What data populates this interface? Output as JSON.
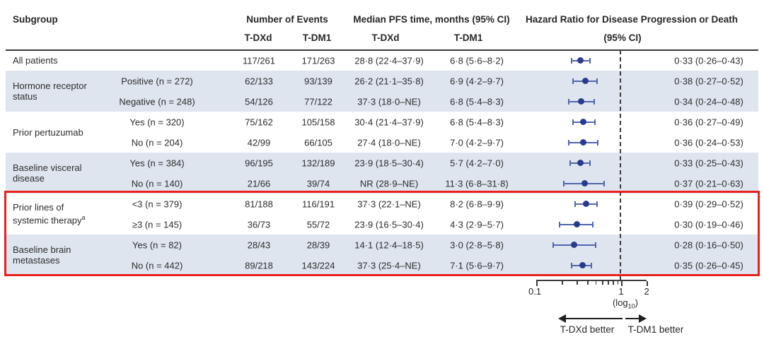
{
  "figure": {
    "headers": {
      "subgroup": "Subgroup",
      "events": "Number of Events",
      "events_tdxd": "T-DXd",
      "events_tdm1": "T-DM1",
      "pfs": "Median PFS time, months (95% CI)",
      "pfs_tdxd": "T-DXd",
      "pfs_tdm1": "T-DM1",
      "hr_line1": "Hazard Ratio for Disease Progression or Death",
      "hr_line2": "(95% CI)"
    },
    "colors": {
      "row_band": "#dee5ef",
      "marker_dot": "#2a3b8f",
      "ci_line": "#5265ae",
      "highlight_box": "#e9211c",
      "reference_dash": "#3c3c3c"
    }
  },
  "chart_data": {
    "type": "scatter",
    "variant": "forest-plot",
    "x_scale": "log10",
    "x_range": [
      0.1,
      2
    ],
    "x_ticks": [
      0.1,
      1,
      2
    ],
    "x_tick_labels": [
      "0.1",
      "1",
      "2"
    ],
    "reference_line": 1,
    "scale_note_prefix": "(log",
    "scale_note_sub": "10",
    "scale_note_suffix": ")",
    "direction_left": "T-DXd better",
    "direction_right": "T-DM1 better",
    "highlighted_groups": [
      "Prior lines of systemic therapy",
      "Baseline brain metastases"
    ],
    "groups": [
      {
        "label_lines": [
          "All patients"
        ],
        "sup": "",
        "shaded": false,
        "rows": [
          {
            "sub": "",
            "events_tdxd": "117/261",
            "events_tdm1": "171/263",
            "pfs_tdxd": "28·8 (22·4–37·9)",
            "pfs_tdm1": "6·8 (5·6–8·2)",
            "hr_text": "0·33 (0·26–0·43)",
            "hr": 0.33,
            "lo": 0.26,
            "hi": 0.43
          }
        ]
      },
      {
        "label_lines": [
          "Hormone receptor",
          "status"
        ],
        "sup": "",
        "shaded": true,
        "rows": [
          {
            "sub": "Positive (n = 272)",
            "events_tdxd": "62/133",
            "events_tdm1": "93/139",
            "pfs_tdxd": "26·2 (21·1–35·8)",
            "pfs_tdm1": "6·9 (4·2–9·7)",
            "hr_text": "0·38 (0·27–0·52)",
            "hr": 0.38,
            "lo": 0.27,
            "hi": 0.52
          },
          {
            "sub": "Negative (n = 248)",
            "events_tdxd": "54/126",
            "events_tdm1": "77/122",
            "pfs_tdxd": "37·3 (18·0–NE)",
            "pfs_tdm1": "6·8 (5·4–8·3)",
            "hr_text": "0·34 (0·24–0·48)",
            "hr": 0.34,
            "lo": 0.24,
            "hi": 0.48
          }
        ]
      },
      {
        "label_lines": [
          "Prior pertuzumab"
        ],
        "sup": "",
        "shaded": false,
        "rows": [
          {
            "sub": "Yes (n = 320)",
            "events_tdxd": "75/162",
            "events_tdm1": "105/158",
            "pfs_tdxd": "30·4 (21·4–37·9)",
            "pfs_tdm1": "6·8 (5·4–8·3)",
            "hr_text": "0·36 (0·27–0·49)",
            "hr": 0.36,
            "lo": 0.27,
            "hi": 0.49
          },
          {
            "sub": "No (n = 204)",
            "events_tdxd": "42/99",
            "events_tdm1": "66/105",
            "pfs_tdxd": "27·4 (18·0–NE)",
            "pfs_tdm1": "7·0 (4·2–9·7)",
            "hr_text": "0·36 (0·24–0·53)",
            "hr": 0.36,
            "lo": 0.24,
            "hi": 0.53
          }
        ]
      },
      {
        "label_lines": [
          "Baseline visceral",
          "disease"
        ],
        "sup": "",
        "shaded": true,
        "rows": [
          {
            "sub": "Yes (n = 384)",
            "events_tdxd": "96/195",
            "events_tdm1": "132/189",
            "pfs_tdxd": "23·9 (18·5–30·4)",
            "pfs_tdm1": "5·7 (4·2–7·0)",
            "hr_text": "0·33 (0·25–0·43)",
            "hr": 0.33,
            "lo": 0.25,
            "hi": 0.43
          },
          {
            "sub": "No (n = 140)",
            "events_tdxd": "21/66",
            "events_tdm1": "39/74",
            "pfs_tdxd": "NR (28·9–NE)",
            "pfs_tdm1": "11·3 (6·8–31·8)",
            "hr_text": "0·37 (0·21–0·63)",
            "hr": 0.37,
            "lo": 0.21,
            "hi": 0.63
          }
        ]
      },
      {
        "label_lines": [
          "Prior lines of",
          "systemic therapy"
        ],
        "sup": "a",
        "shaded": false,
        "rows": [
          {
            "sub": "<3 (n = 379)",
            "events_tdxd": "81/188",
            "events_tdm1": "116/191",
            "pfs_tdxd": "37·3 (22·1–NE)",
            "pfs_tdm1": "8·2 (6·8–9·9)",
            "hr_text": "0·39 (0·29–0·52)",
            "hr": 0.39,
            "lo": 0.29,
            "hi": 0.52
          },
          {
            "sub": "≥3 (n = 145)",
            "events_tdxd": "36/73",
            "events_tdm1": "55/72",
            "pfs_tdxd": "23·9 (16·5–30·4)",
            "pfs_tdm1": "4·3 (2·9–5·7)",
            "hr_text": "0·30 (0·19–0·46)",
            "hr": 0.3,
            "lo": 0.19,
            "hi": 0.46
          }
        ]
      },
      {
        "label_lines": [
          "Baseline brain",
          "metastases"
        ],
        "sup": "",
        "shaded": true,
        "rows": [
          {
            "sub": "Yes (n = 82)",
            "events_tdxd": "28/43",
            "events_tdm1": "28/39",
            "pfs_tdxd": "14·1 (12·4–18·5)",
            "pfs_tdm1": "3·0 (2·8–5·8)",
            "hr_text": "0·28 (0·16–0·50)",
            "hr": 0.28,
            "lo": 0.16,
            "hi": 0.5
          },
          {
            "sub": "No (n = 442)",
            "events_tdxd": "89/218",
            "events_tdm1": "143/224",
            "pfs_tdxd": "37·3 (25·4–NE)",
            "pfs_tdm1": "7·1 (5·6–9·7)",
            "hr_text": "0·35 (0·26–0·45)",
            "hr": 0.35,
            "lo": 0.26,
            "hi": 0.45
          }
        ]
      }
    ]
  }
}
